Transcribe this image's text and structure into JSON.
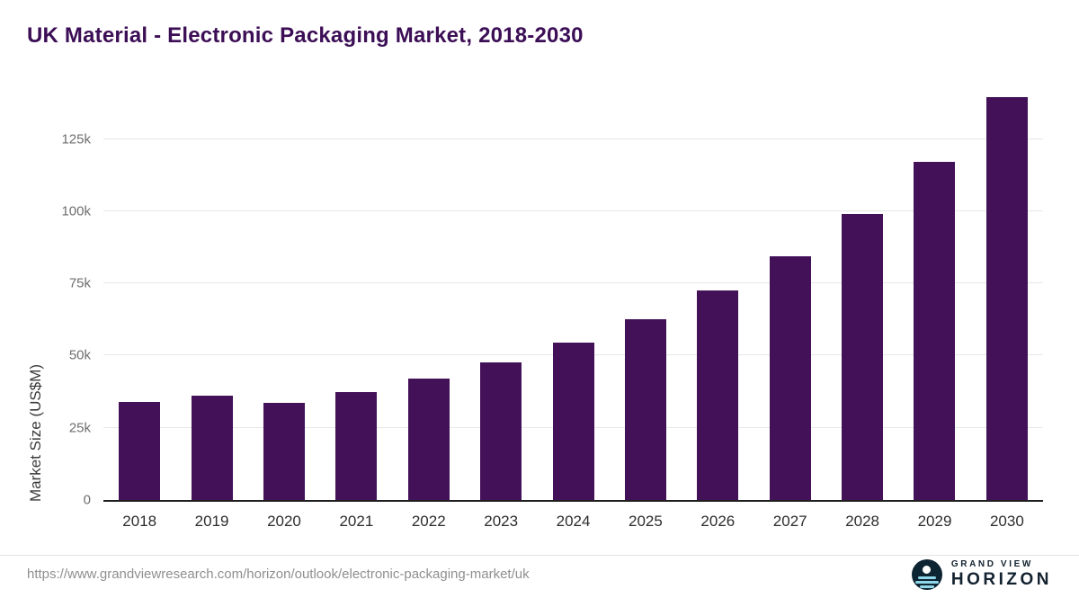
{
  "title": "UK Material - Electronic Packaging Market, 2018-2030",
  "chart_data": {
    "type": "bar",
    "title": "UK Material - Electronic Packaging Market, 2018-2030",
    "categories": [
      "2018",
      "2019",
      "2020",
      "2021",
      "2022",
      "2023",
      "2024",
      "2025",
      "2026",
      "2027",
      "2028",
      "2029",
      "2030"
    ],
    "values": [
      34000,
      36000,
      33500,
      37500,
      42000,
      47500,
      54500,
      62500,
      72500,
      84500,
      99000,
      117000,
      139500
    ],
    "xlabel": "",
    "ylabel": "Market Size (US$M)",
    "ylim": [
      0,
      142000
    ],
    "yticks": [
      {
        "value": 0,
        "label": "0"
      },
      {
        "value": 25000,
        "label": "25k"
      },
      {
        "value": 50000,
        "label": "50k"
      },
      {
        "value": 75000,
        "label": "75k"
      },
      {
        "value": 100000,
        "label": "100k"
      },
      {
        "value": 125000,
        "label": "125k"
      }
    ],
    "grid": true,
    "legend": "none",
    "bar_color": "#431157"
  },
  "colors": {
    "title": "#3c0e56",
    "bar": "#431157",
    "gridline": "#e7e7e7",
    "axis": "#1f1f1f",
    "logo_navy": "#0d2433",
    "logo_teal": "#8fd6e8"
  },
  "footer": {
    "source_url": "https://www.grandviewresearch.com/horizon/outlook/electronic-packaging-market/uk",
    "logo": {
      "brand_top": "GRAND VIEW",
      "brand_bottom": "HORIZON"
    }
  }
}
